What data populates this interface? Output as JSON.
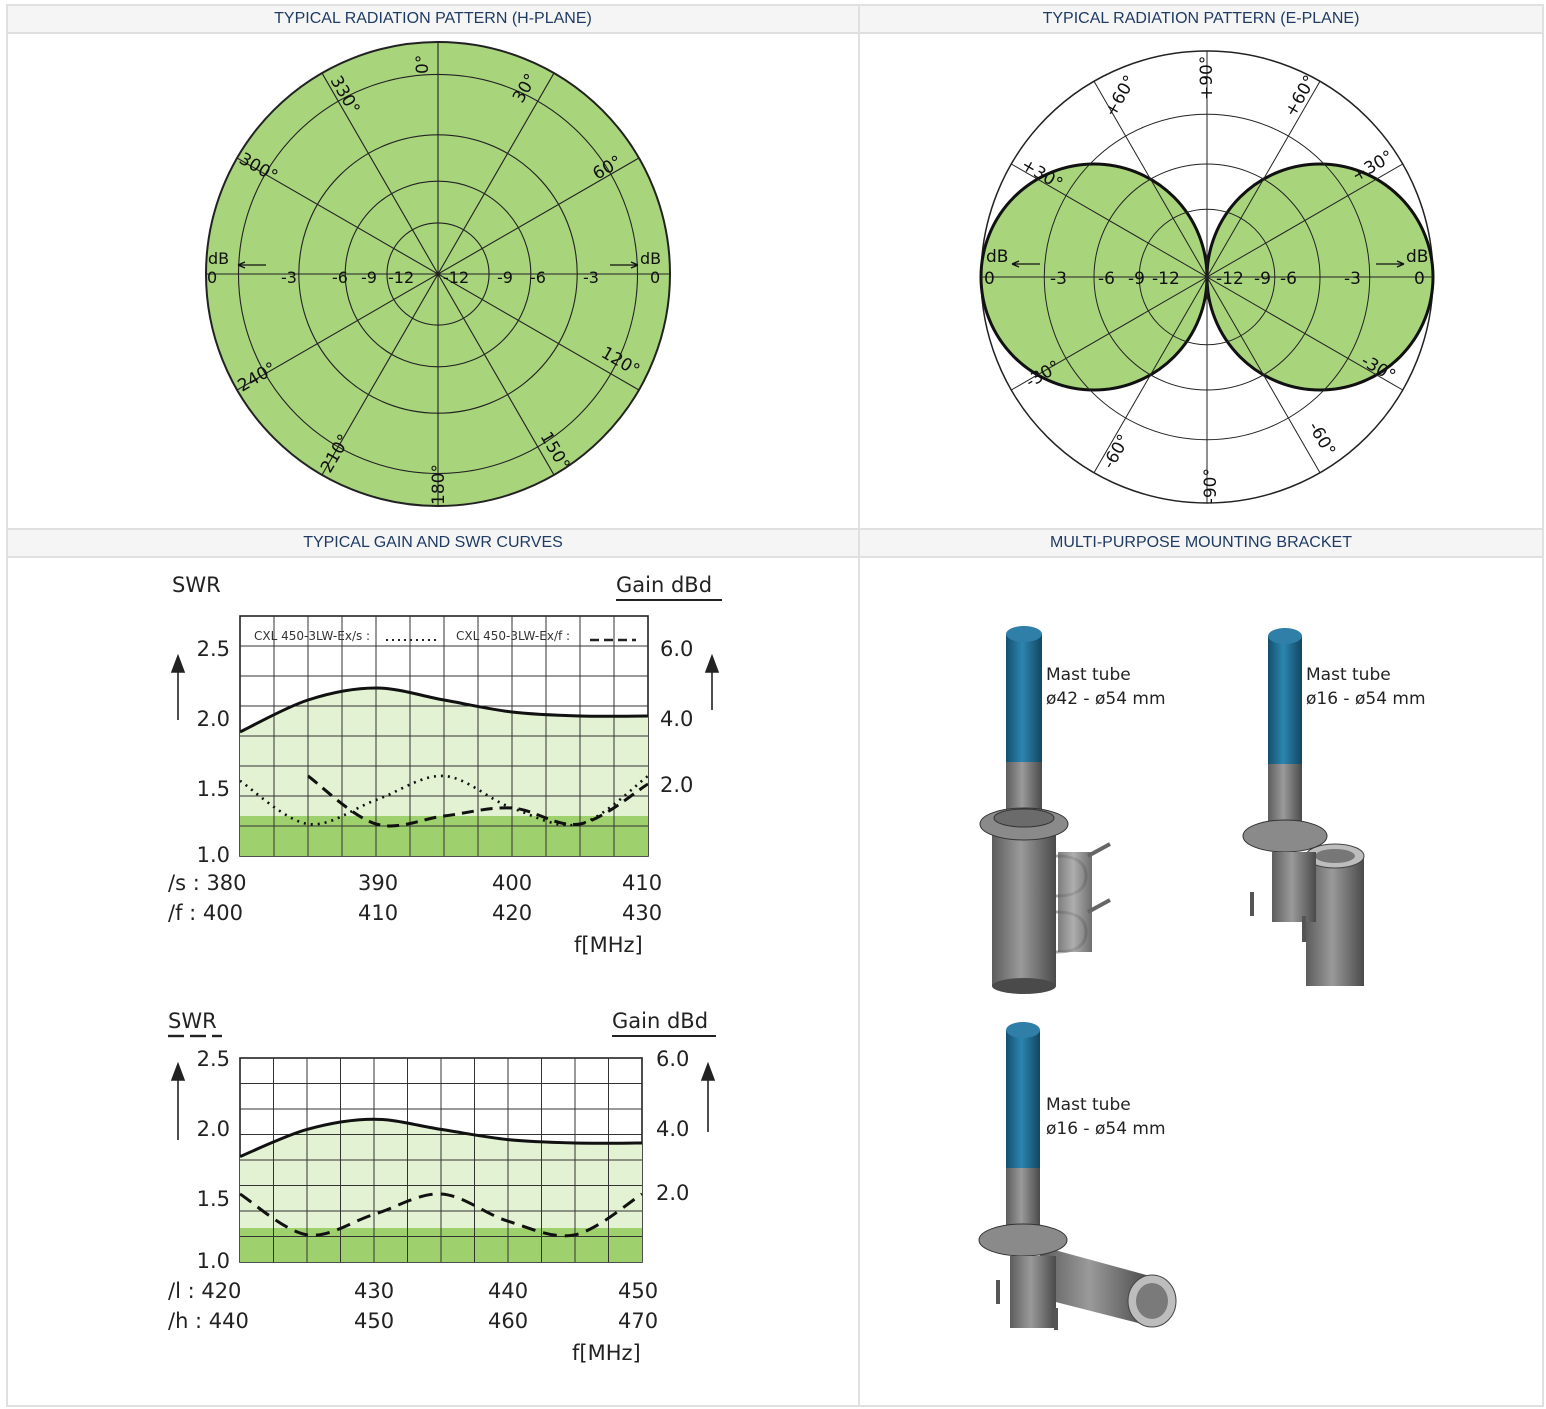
{
  "headers": {
    "h_plane": "TYPICAL RADIATION PATTERN (H-PLANE)",
    "e_plane": "TYPICAL RADIATION PATTERN (E-PLANE)",
    "gain_swr": "TYPICAL GAIN AND SWR CURVES",
    "bracket": "MULTI-PURPOSE MOUNTING BRACKET"
  },
  "colors": {
    "fill_green": "#a8d47c",
    "light_green": "#e3f2d3",
    "mid_green": "#9fd06e",
    "header_text": "#1f3b63",
    "mast_blue": "#1e6e94"
  },
  "polar_h": {
    "angle_labels": [
      "0°",
      "30°",
      "60°",
      "120°",
      "150°",
      "180°",
      "210°",
      "240°",
      "300°",
      "330°"
    ],
    "db_left": [
      "0",
      "-3",
      "-6",
      "-9",
      "-12"
    ],
    "db_right": [
      "-12",
      "-9",
      "-6",
      "-3",
      "0"
    ],
    "db_unit": "dB"
  },
  "polar_e": {
    "angle_labels": [
      "+90°",
      "+60°",
      "+30°",
      "+60°",
      "+30°",
      "-30°",
      "-60°",
      "-90°",
      "-60°",
      "-30°"
    ],
    "db_left": [
      "0",
      "-3",
      "-6",
      "-9",
      "-12"
    ],
    "db_right": [
      "-12",
      "-9",
      "-6",
      "-3",
      "0"
    ],
    "db_unit": "dB"
  },
  "chart_data": [
    {
      "type": "line",
      "left_axis_label": "SWR",
      "right_axis_label": "Gain dBd",
      "xlabel": "f[MHz]",
      "swr_ticks": [
        "2.5",
        "2.0",
        "1.5",
        "1.0"
      ],
      "gain_ticks": [
        "6.0",
        "4.0",
        "2.0"
      ],
      "ylim_swr": [
        1.0,
        2.5
      ],
      "ylim_gain": [
        0,
        6.0
      ],
      "legend": [
        "CXL 450-3LW-Ex/s :",
        "CXL 450-3LW-Ex/f :"
      ],
      "x_rows": [
        {
          "prefix": "/s : 380",
          "labels": [
            "390",
            "400",
            "410"
          ]
        },
        {
          "prefix": "/f : 400",
          "labels": [
            "410",
            "420",
            "430"
          ]
        }
      ],
      "x": [
        380,
        385,
        390,
        395,
        400,
        405,
        410
      ],
      "series": [
        {
          "name": "Gain",
          "values": [
            3.1,
            3.9,
            4.2,
            3.9,
            3.6,
            3.5,
            3.5
          ]
        },
        {
          "name": "CXL 450-3LW-Ex/s :",
          "values": [
            1.47,
            1.2,
            1.35,
            1.5,
            1.3,
            1.2,
            1.5
          ]
        },
        {
          "name": "CXL 450-3LW-Ex/f :",
          "values": [
            null,
            1.5,
            1.2,
            1.25,
            1.3,
            1.2,
            1.45
          ]
        }
      ]
    },
    {
      "type": "line",
      "left_axis_label": "SWR",
      "right_axis_label": "Gain dBd",
      "xlabel": "f[MHz]",
      "swr_ticks": [
        "2.5",
        "2.0",
        "1.5",
        "1.0"
      ],
      "gain_ticks": [
        "6.0",
        "4.0",
        "2.0"
      ],
      "ylim_swr": [
        1.0,
        2.5
      ],
      "ylim_gain": [
        0,
        6.0
      ],
      "x_rows": [
        {
          "prefix": "/l : 420",
          "labels": [
            "430",
            "440",
            "450"
          ]
        },
        {
          "prefix": "/h : 440",
          "labels": [
            "450",
            "460",
            "470"
          ]
        }
      ],
      "x": [
        420,
        425,
        430,
        435,
        440,
        445,
        450
      ],
      "series": [
        {
          "name": "Gain",
          "values": [
            3.1,
            3.9,
            4.2,
            3.9,
            3.6,
            3.5,
            3.5
          ]
        },
        {
          "name": "SWR",
          "values": [
            1.5,
            1.2,
            1.35,
            1.5,
            1.3,
            1.2,
            1.5
          ]
        }
      ]
    }
  ],
  "brackets": [
    {
      "label1": "Mast tube",
      "label2": "ø42 - ø54 mm"
    },
    {
      "label1": "Mast tube",
      "label2": "ø16 - ø54 mm"
    },
    {
      "label1": "Mast tube",
      "label2": "ø16 - ø54 mm"
    }
  ]
}
